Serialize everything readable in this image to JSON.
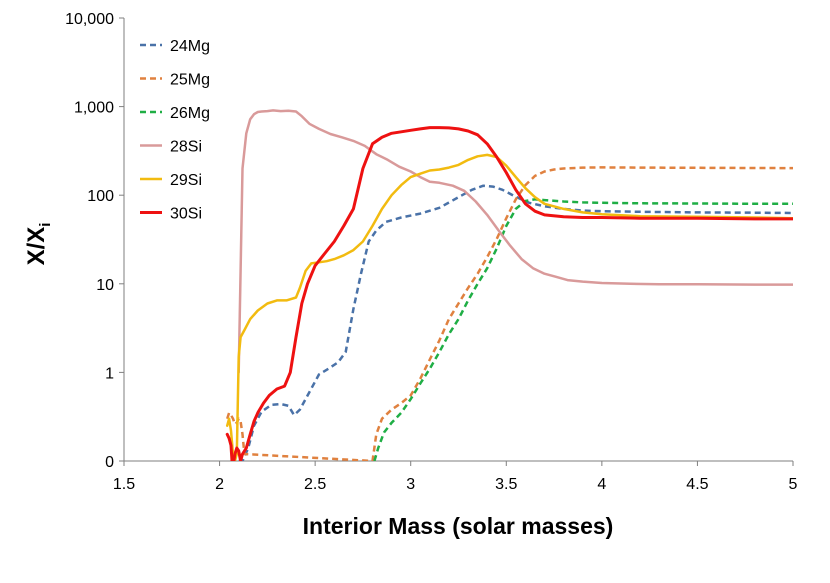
{
  "chart_data": {
    "type": "line",
    "title": "",
    "xlabel": "Interior Mass (solar masses)",
    "ylabel_main": "X/X",
    "ylabel_sub": "i",
    "xlim": [
      1.5,
      5
    ],
    "ylim_log10": [
      -1,
      4
    ],
    "x_ticks": [
      1.5,
      2,
      2.5,
      3,
      3.5,
      4,
      4.5,
      5
    ],
    "x_tick_labels": [
      "1.5",
      "2",
      "2.5",
      "3",
      "3.5",
      "4",
      "4.5",
      "5"
    ],
    "y_ticks_log10": [
      -1,
      0,
      1,
      2,
      3,
      4
    ],
    "y_tick_labels": [
      "0",
      "1",
      "10",
      "100",
      "1,000",
      "10,000"
    ],
    "legend_position": "top-left",
    "series": [
      {
        "name": "24Mg",
        "color": "#4a72a8",
        "dash": true,
        "width": 2.5,
        "x": [
          2.1,
          2.12,
          2.15,
          2.18,
          2.22,
          2.27,
          2.32,
          2.36,
          2.39,
          2.42,
          2.47,
          2.52,
          2.57,
          2.62,
          2.66,
          2.7,
          2.74,
          2.78,
          2.82,
          2.87,
          2.95,
          3.05,
          3.15,
          3.25,
          3.32,
          3.38,
          3.43,
          3.48,
          3.55,
          3.62,
          3.7,
          3.8,
          3.9,
          4.0,
          4.2,
          4.5,
          4.8,
          5.0
        ],
        "y": [
          0.07,
          0.09,
          0.14,
          0.25,
          0.36,
          0.43,
          0.44,
          0.42,
          0.33,
          0.38,
          0.6,
          0.95,
          1.1,
          1.3,
          1.7,
          5.2,
          13,
          30,
          40,
          50,
          56,
          62,
          72,
          95,
          115,
          128,
          125,
          115,
          96,
          82,
          75,
          70,
          67,
          66,
          65,
          64,
          63.5,
          63
        ]
      },
      {
        "name": "25Mg",
        "color": "#e0813f",
        "dash": true,
        "width": 2.5,
        "x": [
          2.04,
          2.05,
          2.06,
          2.07,
          2.08,
          2.09,
          2.1,
          2.11,
          2.12,
          2.13,
          2.8,
          2.82,
          2.85,
          2.9,
          2.95,
          3.0,
          3.05,
          3.1,
          3.15,
          3.2,
          3.25,
          3.3,
          3.35,
          3.4,
          3.45,
          3.5,
          3.55,
          3.6,
          3.65,
          3.7,
          3.75,
          3.8,
          3.9,
          4.0,
          4.2,
          4.5,
          4.8,
          5.0
        ],
        "y": [
          0.3,
          0.35,
          0.33,
          0.3,
          0.26,
          0.27,
          0.3,
          0.28,
          0.2,
          0.12,
          0.1,
          0.2,
          0.3,
          0.38,
          0.45,
          0.55,
          0.85,
          1.4,
          2.3,
          4,
          6,
          9,
          13,
          20,
          32,
          55,
          90,
          130,
          165,
          185,
          195,
          200,
          205,
          206,
          205,
          204,
          203,
          202
        ]
      },
      {
        "name": "26Mg",
        "color": "#1fae45",
        "dash": true,
        "width": 2.5,
        "x": [
          2.81,
          2.83,
          2.86,
          2.9,
          2.95,
          3.0,
          3.05,
          3.1,
          3.15,
          3.2,
          3.25,
          3.3,
          3.35,
          3.4,
          3.45,
          3.5,
          3.55,
          3.6,
          3.65,
          3.7,
          3.8,
          3.9,
          4.0,
          4.2,
          4.5,
          4.8,
          5.0
        ],
        "y": [
          0.1,
          0.14,
          0.21,
          0.27,
          0.35,
          0.5,
          0.75,
          1.1,
          1.7,
          2.7,
          4,
          6.5,
          10,
          15,
          25,
          45,
          70,
          86,
          90,
          88,
          85,
          83,
          82,
          81,
          80.5,
          80,
          80
        ]
      },
      {
        "name": "28Si",
        "color": "#d99a9a",
        "dash": false,
        "width": 2.5,
        "x": [
          2.1,
          2.12,
          2.14,
          2.16,
          2.18,
          2.2,
          2.22,
          2.25,
          2.28,
          2.32,
          2.36,
          2.4,
          2.43,
          2.47,
          2.52,
          2.58,
          2.64,
          2.7,
          2.76,
          2.82,
          2.88,
          2.94,
          3.0,
          3.05,
          3.1,
          3.15,
          3.22,
          3.28,
          3.34,
          3.4,
          3.46,
          3.52,
          3.58,
          3.64,
          3.7,
          3.76,
          3.82,
          3.9,
          4.0,
          4.15,
          4.3,
          4.5,
          4.8,
          5.0
        ],
        "y": [
          1,
          200,
          500,
          720,
          820,
          870,
          880,
          890,
          905,
          890,
          900,
          880,
          780,
          640,
          560,
          490,
          450,
          410,
          360,
          290,
          250,
          210,
          185,
          160,
          142,
          138,
          128,
          112,
          85,
          60,
          40,
          27,
          19,
          15,
          13,
          12,
          11,
          10.6,
          10.2,
          10,
          9.9,
          9.9,
          9.8,
          9.8
        ]
      },
      {
        "name": "29Si",
        "color": "#f2bb10",
        "dash": false,
        "width": 2.5,
        "x": [
          2.04,
          2.05,
          2.06,
          2.07,
          2.08,
          2.09,
          2.1,
          2.11,
          2.13,
          2.16,
          2.2,
          2.25,
          2.3,
          2.35,
          2.4,
          2.42,
          2.45,
          2.48,
          2.52,
          2.56,
          2.6,
          2.65,
          2.7,
          2.75,
          2.8,
          2.85,
          2.9,
          2.95,
          3.0,
          3.05,
          3.1,
          3.15,
          3.2,
          3.25,
          3.3,
          3.35,
          3.4,
          3.45,
          3.5,
          3.55,
          3.6,
          3.65,
          3.7,
          3.8,
          3.9,
          4.0,
          4.2,
          4.5,
          4.8,
          5.0
        ],
        "y": [
          0.25,
          0.3,
          0.22,
          0.12,
          0.1,
          0.12,
          1.5,
          2.5,
          3.0,
          4.0,
          5.0,
          6.0,
          6.5,
          6.5,
          7.0,
          9.0,
          14,
          17,
          17.5,
          18,
          19,
          21,
          24,
          30,
          45,
          70,
          100,
          130,
          160,
          175,
          190,
          195,
          205,
          220,
          250,
          275,
          285,
          270,
          215,
          160,
          120,
          95,
          80,
          70,
          64,
          61,
          58,
          57,
          56,
          55
        ]
      },
      {
        "name": "30Si",
        "color": "#ee1111",
        "dash": false,
        "width": 3,
        "x": [
          2.04,
          2.05,
          2.06,
          2.065,
          2.07,
          2.075,
          2.08,
          2.09,
          2.1,
          2.11,
          2.12,
          2.14,
          2.16,
          2.18,
          2.2,
          2.23,
          2.26,
          2.3,
          2.34,
          2.37,
          2.4,
          2.43,
          2.46,
          2.5,
          2.55,
          2.6,
          2.65,
          2.7,
          2.75,
          2.8,
          2.85,
          2.9,
          2.95,
          3.0,
          3.05,
          3.1,
          3.15,
          3.2,
          3.25,
          3.3,
          3.35,
          3.4,
          3.45,
          3.5,
          3.55,
          3.6,
          3.65,
          3.7,
          3.8,
          3.9,
          4.0,
          4.2,
          4.5,
          4.8,
          5.0
        ],
        "y": [
          0.2,
          0.18,
          0.15,
          0.1,
          0.09,
          0.1,
          0.12,
          0.14,
          0.13,
          0.1,
          0.12,
          0.14,
          0.2,
          0.28,
          0.35,
          0.45,
          0.55,
          0.65,
          0.7,
          1.0,
          2.5,
          6,
          10,
          16,
          22,
          30,
          45,
          70,
          200,
          380,
          450,
          500,
          520,
          540,
          560,
          580,
          580,
          575,
          560,
          530,
          480,
          380,
          270,
          180,
          115,
          80,
          66,
          60,
          57,
          56,
          56,
          55,
          55,
          54,
          54
        ]
      }
    ]
  }
}
